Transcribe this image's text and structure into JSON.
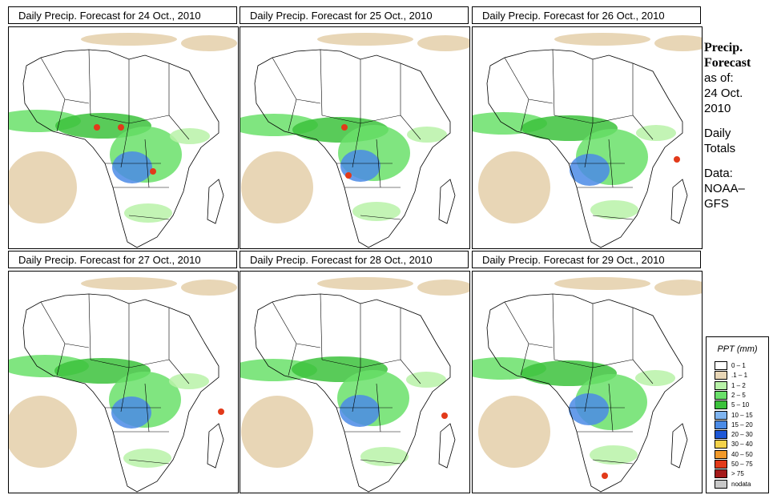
{
  "panels": [
    {
      "title": "Daily Precip. Forecast for  24 Oct., 2010"
    },
    {
      "title": "Daily Precip. Forecast for  25 Oct., 2010"
    },
    {
      "title": "Daily Precip. Forecast for  26 Oct., 2010"
    },
    {
      "title": "Daily Precip. Forecast for  27 Oct., 2010"
    },
    {
      "title": "Daily Precip. Forecast for  28 Oct., 2010"
    },
    {
      "title": "Daily Precip. Forecast for  29 Oct., 2010"
    }
  ],
  "side": {
    "heading_1": "Precip.",
    "heading_2": "Forecast",
    "asof_1": "as of:",
    "asof_2": "24 Oct.",
    "asof_3": "2010",
    "totals_1": "Daily",
    "totals_2": "Totals",
    "data_1": "Data:",
    "data_2": "NOAA–",
    "data_3": "GFS"
  },
  "legend": {
    "title": "PPT (mm)",
    "items": [
      {
        "label": "0 – 1",
        "color": "#ffffff"
      },
      {
        "label": ".1 – 1",
        "color": "#e8d6b6"
      },
      {
        "label": "1 – 2",
        "color": "#b8f2a8"
      },
      {
        "label": "2 – 5",
        "color": "#6ae06a"
      },
      {
        "label": "5 – 10",
        "color": "#3cc23c"
      },
      {
        "label": "10 – 15",
        "color": "#7fb4f0"
      },
      {
        "label": "15 – 20",
        "color": "#4b8be6"
      },
      {
        "label": "20 – 30",
        "color": "#1d57d6"
      },
      {
        "label": "30 – 40",
        "color": "#f4d24a"
      },
      {
        "label": "40 – 50",
        "color": "#f29a2a"
      },
      {
        "label": "50 – 75",
        "color": "#e23a1a"
      },
      {
        "label": "> 75",
        "color": "#a51a1a"
      },
      {
        "label": "nodata",
        "color": "#c8c8c8"
      }
    ]
  }
}
